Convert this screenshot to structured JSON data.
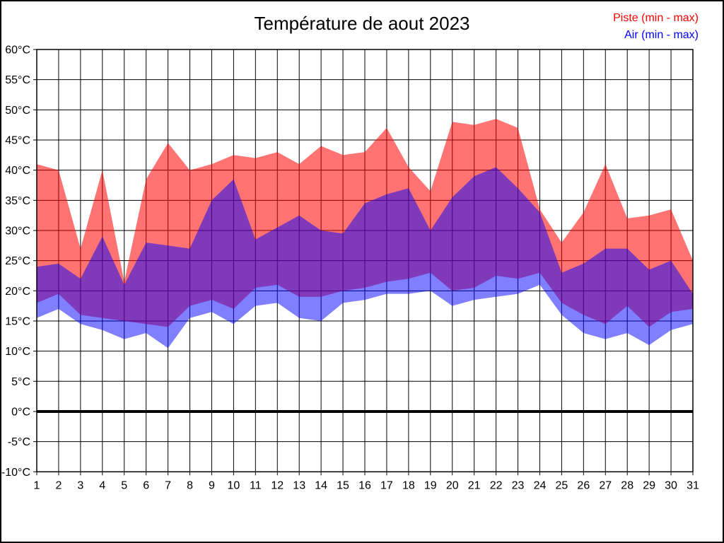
{
  "title": "Température de aout 2023",
  "legend": {
    "piste": "Piste (min - max)",
    "air": "Air (min - max)"
  },
  "colors": {
    "piste": "#ff0000",
    "air": "#0000ff",
    "piste_fill_opacity": 0.55,
    "air_fill_opacity": 0.5,
    "grid": "#000000",
    "frame": "#000000",
    "background": "#ffffff"
  },
  "chart_data": {
    "type": "area",
    "title": "Température de aout 2023",
    "xlabel": "",
    "ylabel": "",
    "x": [
      1,
      2,
      3,
      4,
      5,
      6,
      7,
      8,
      9,
      10,
      11,
      12,
      13,
      14,
      15,
      16,
      17,
      18,
      19,
      20,
      21,
      22,
      23,
      24,
      25,
      26,
      27,
      28,
      29,
      30,
      31
    ],
    "x_tick_labels": [
      "1",
      "2",
      "3",
      "4",
      "5",
      "6",
      "7",
      "8",
      "9",
      "10",
      "11",
      "12",
      "13",
      "14",
      "15",
      "16",
      "17",
      "18",
      "19",
      "20",
      "21",
      "22",
      "23",
      "24",
      "25",
      "26",
      "27",
      "28",
      "29",
      "30",
      "31"
    ],
    "ylim": [
      -10,
      60
    ],
    "ytick_step": 5,
    "y_tick_labels": [
      "60°C",
      "55°C",
      "50°C",
      "45°C",
      "40°C",
      "35°C",
      "30°C",
      "25°C",
      "20°C",
      "15°C",
      "10°C",
      "5°C",
      "0°C",
      "-5°C",
      "-10°C"
    ],
    "grid": true,
    "zero_line_thick": true,
    "legend_position": "top-right",
    "series": [
      {
        "name": "Piste (min - max)",
        "color": "#ff0000",
        "max": [
          41,
          40,
          27,
          40,
          21.5,
          38.5,
          44.5,
          40,
          41,
          42.5,
          42,
          43,
          41,
          44,
          42.5,
          43,
          47,
          40.5,
          36.5,
          48,
          47.5,
          48.5,
          47,
          33.5,
          28,
          33,
          41,
          32,
          32.5,
          33.5,
          25
        ],
        "min": [
          18,
          19.5,
          16,
          15.5,
          15,
          14.5,
          14,
          17.5,
          18.5,
          17,
          20.5,
          21,
          19,
          19,
          20,
          20.5,
          21.5,
          22,
          23,
          20,
          20.5,
          22.5,
          22,
          23,
          18,
          16,
          14.5,
          17.5,
          14,
          16.5,
          17
        ]
      },
      {
        "name": "Air (min - max)",
        "color": "#0000ff",
        "max": [
          24,
          24.5,
          22,
          29,
          21,
          28,
          27.5,
          27,
          35,
          38.5,
          28.5,
          30.5,
          32.5,
          30,
          29.5,
          34.5,
          36,
          37,
          30,
          35.5,
          39,
          40.5,
          37,
          33,
          23,
          24.5,
          27,
          27,
          23.5,
          25,
          19.5
        ],
        "min": [
          15.5,
          17,
          14.5,
          13.5,
          12,
          13,
          10.5,
          15.5,
          16.5,
          14.5,
          17.5,
          18,
          15.5,
          15,
          18,
          18.5,
          19.5,
          19.5,
          20,
          17.5,
          18.5,
          19,
          19.5,
          21,
          16,
          13,
          12,
          13,
          11,
          13.5,
          14.5
        ]
      }
    ]
  }
}
